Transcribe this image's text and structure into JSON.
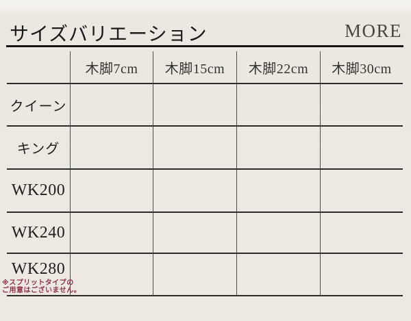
{
  "header": {
    "title": "サイズバリエーション",
    "more_label": "MORE"
  },
  "table": {
    "column_headers": [
      "木脚7cm",
      "木脚15cm",
      "木脚22cm",
      "木脚30cm"
    ],
    "row_headers": [
      "クイーン",
      "キング",
      "WK200",
      "WK240",
      "WK280"
    ],
    "cells": [
      [
        "",
        "",
        "",
        ""
      ],
      [
        "",
        "",
        "",
        ""
      ],
      [
        "",
        "",
        "",
        ""
      ],
      [
        "",
        "",
        "",
        ""
      ],
      [
        "",
        "",
        "",
        ""
      ]
    ],
    "wk280_note_line1": "※スプリットタイプの",
    "wk280_note_line2": "ご用意はございません。"
  },
  "colors": {
    "background": "#EDE9E2",
    "title_text": "#1B1B1B",
    "more_text": "#4C473D",
    "horizontal_line": "#2B2B2B",
    "vertical_line": "#4D4D4D",
    "note_text": "#8E3044"
  }
}
